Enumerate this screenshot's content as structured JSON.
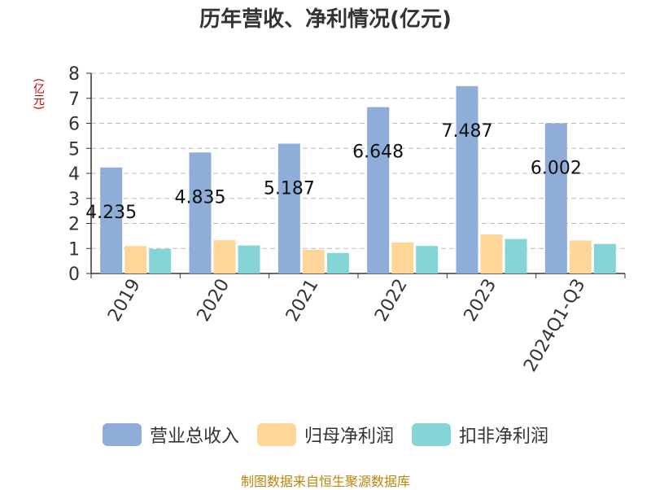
{
  "chart_data": {
    "type": "bar",
    "title": "历年营收、净利情况(亿元)",
    "ylabel": "(亿元)",
    "categories": [
      "2019",
      "2020",
      "2021",
      "2022",
      "2023",
      "2024Q1-Q3"
    ],
    "ylim": [
      0,
      8
    ],
    "yticks": [
      "0",
      "1",
      "2",
      "3",
      "4",
      "5",
      "6",
      "7",
      "8"
    ],
    "grid": true,
    "legend_position": "bottom",
    "series": [
      {
        "name": "营业总收入",
        "values": [
          4.235,
          4.835,
          5.187,
          6.648,
          7.487,
          6.002
        ],
        "color": "#8eadd9",
        "labels": [
          "4.235",
          "4.835",
          "5.187",
          "6.648",
          "7.487",
          "6.002"
        ]
      },
      {
        "name": "归母净利润",
        "values": [
          1.1,
          1.33,
          0.95,
          1.24,
          1.56,
          1.32
        ],
        "color": "#ffd699"
      },
      {
        "name": "扣非净利润",
        "values": [
          0.98,
          1.12,
          0.82,
          1.1,
          1.38,
          1.18
        ],
        "color": "#86d5d6"
      }
    ],
    "source": "制图数据来自恒生聚源数据库"
  }
}
